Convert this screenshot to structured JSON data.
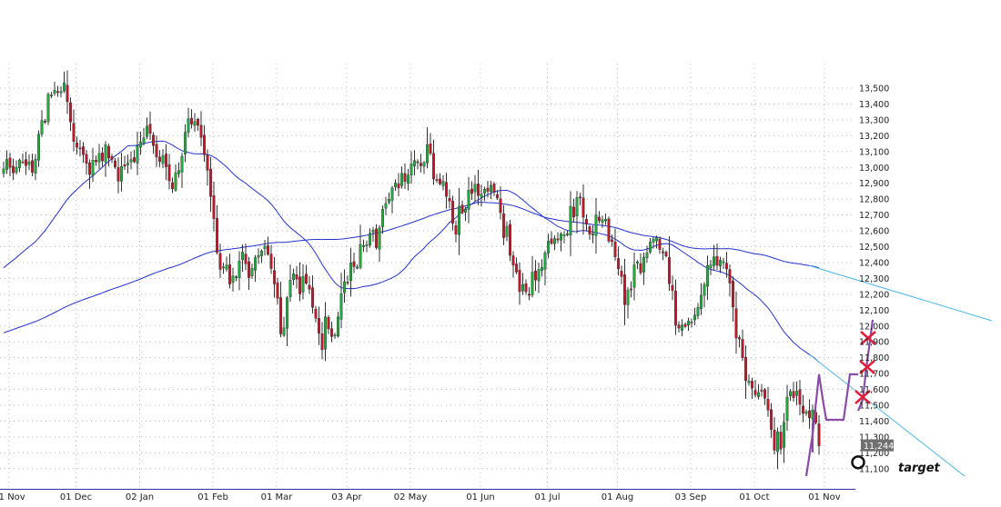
{
  "chart_data": {
    "type": "candlestick",
    "grid": true,
    "y_axis": {
      "side": "right",
      "ylim": [
        11050,
        13600
      ],
      "ticks": [
        11100,
        11200,
        11300,
        11400,
        11500,
        11600,
        11700,
        11800,
        11900,
        12000,
        12100,
        12200,
        12300,
        12400,
        12500,
        12600,
        12700,
        12800,
        12900,
        13000,
        13100,
        13200,
        13300,
        13400,
        13500
      ],
      "tick_labels": [
        "11,100",
        "11,200",
        "11,300",
        "11,400",
        "11,500",
        "11,600",
        "11,700",
        "11,800",
        "11,900",
        "12,000",
        "12,100",
        "12,200",
        "12,300",
        "12,400",
        "12,500",
        "12,600",
        "12,700",
        "12,800",
        "12,900",
        "13,000",
        "13,100",
        "13,200",
        "13,300",
        "13,400",
        "13,500"
      ]
    },
    "x_axis": {
      "tick_labels": [
        "01 Nov",
        "01 Dec",
        "02 Jan",
        "01 Feb",
        "01 Mar",
        "03 Apr",
        "02 May",
        "01 Jun",
        "01 Jul",
        "01 Aug",
        "03 Sep",
        "01 Oct",
        "01 Nov"
      ],
      "tick_index": [
        0,
        21,
        41,
        64,
        84,
        106,
        126,
        148,
        169,
        191,
        214,
        234,
        256
      ]
    },
    "last_price": 11244,
    "last_price_label": "11,244",
    "target_value": 11140,
    "target_label": "target",
    "close": [
      12991,
      13051,
      12999,
      12965,
      13001,
      13047,
      13035,
      13012,
      13035,
      12969,
      13052,
      13209,
      13296,
      13290,
      13462,
      13457,
      13486,
      13477,
      13479,
      13534,
      13414,
      13286,
      13164,
      13127,
      13117,
      13081,
      13025,
      12955,
      13046,
      13036,
      13088,
      13041,
      13144,
      13059,
      13050,
      13003,
      12913,
      13006,
      13008,
      13027,
      13049,
      13036,
      13136,
      13159,
      13187,
      13260,
      13214,
      13138,
      13065,
      13037,
      13074,
      13004,
      12915,
      12865,
      12967,
      12980,
      13070,
      13221,
      13306,
      13273,
      13290,
      13266,
      13189,
      13080,
      12982,
      12816,
      12677,
      12463,
      12357,
      12372,
      12384,
      12264,
      12315,
      12311,
      12409,
      12466,
      12392,
      12305,
      12363,
      12431,
      12444,
      12473,
      12504,
      12452,
      12362,
      12265,
      12174,
      11950,
      11989,
      12178,
      12289,
      12329,
      12295,
      12202,
      12312,
      12269,
      12232,
      12117,
      12048,
      11954,
      11850,
      12058,
      11981,
      11933,
      11943,
      12057,
      12204,
      12280,
      12272,
      12398,
      12374,
      12371,
      12515,
      12507,
      12512,
      12585,
      12605,
      12494,
      12619,
      12736,
      12773,
      12799,
      12871,
      12902,
      12870,
      12963,
      12911,
      12951,
      13023,
      13043,
      13031,
      13010,
      13031,
      13143,
      13088,
      12927,
      12923,
      12896,
      12913,
      12817,
      12787,
      12647,
      12578,
      12755,
      12714,
      12737,
      12857,
      12835,
      12893,
      12823,
      12832,
      12863,
      12849,
      12887,
      12842,
      12807,
      12714,
      12556,
      12629,
      12445,
      12383,
      12340,
      12216,
      12261,
      12215,
      12197,
      12340,
      12290,
      12357,
      12369,
      12461,
      12535,
      12520,
      12551,
      12542,
      12581,
      12575,
      12581,
      12754,
      12687,
      12810,
      12812,
      12686,
      12641,
      12579,
      12582,
      12701,
      12663,
      12671,
      12673,
      12535,
      12533,
      12435,
      12360,
      12312,
      12134,
      12227,
      12230,
      12386,
      12404,
      12335,
      12434,
      12462,
      12529,
      12549,
      12557,
      12482,
      12465,
      12440,
      12266,
      12224,
      12004,
      11986,
      12005,
      11996,
      12031,
      12026,
      12069,
      12117,
      12194,
      12261,
      12381,
      12385,
      12436,
      12382,
      12415,
      12406,
      12359,
      12270,
      12119,
      11924,
      11918,
      11799,
      11655,
      11654,
      11608,
      11566,
      11581,
      11593,
      11544,
      11470,
      11347,
      11216,
      11332,
      11223,
      11392,
      11552,
      11587,
      11548,
      11589,
      11506,
      11448,
      11459,
      11420,
      11470,
      11390,
      11244
    ]
  }
}
